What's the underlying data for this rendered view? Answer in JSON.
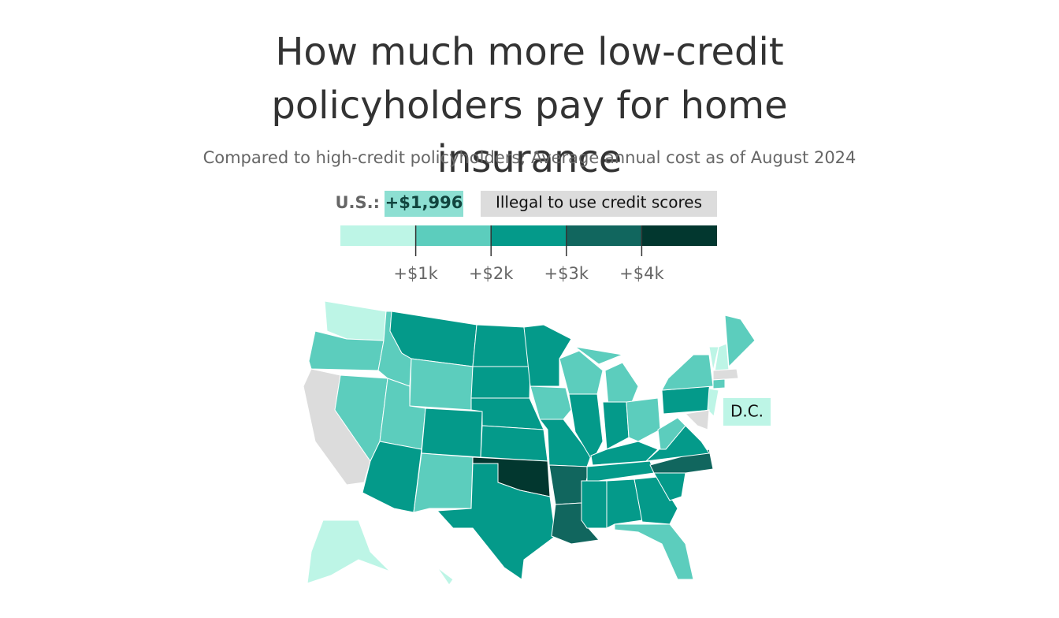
{
  "title": "How much more low-credit policyholders pay for home insurance",
  "subtitle": "Compared to high-credit policyholders; Average annual cost as of August 2024",
  "chart_data": {
    "type": "choropleth",
    "legend": {
      "us_label": "U.S.:",
      "us_value": 1996,
      "us_value_label": "+$1,996",
      "us_value_color": "#8ddfd2",
      "illegal_label": "Illegal to use credit scores",
      "illegal_color": "#dcdcdc",
      "xlim": [
        0,
        5000
      ],
      "xticks": [
        {
          "value": 1000,
          "label": "+$1k"
        },
        {
          "value": 2000,
          "label": "+$2k"
        },
        {
          "value": 3000,
          "label": "+$3k"
        },
        {
          "value": 4000,
          "label": "+$4k"
        }
      ],
      "colors": [
        "#bdf5e6",
        "#5ccdbd",
        "#049a8a",
        "#11665e",
        "#02372f"
      ]
    },
    "regions": [
      "#bdf5e6",
      "#5ccdbd",
      "#dcdcdc",
      "#5ccdbd",
      "#5ccdbd",
      "#049a8a",
      "#5ccdbd",
      "#5ccdbd",
      "#049a8a",
      "#049a8a",
      "#5ccdbd",
      "#049a8a",
      "#049a8a",
      "#049a8a",
      "#049a8a",
      "#02372f",
      "#049a8a",
      "#049a8a",
      "#5ccdbd",
      "#049a8a",
      "#11665e",
      "#11665e",
      "#5ccdbd",
      "#049a8a",
      "#5ccdbd",
      "#5ccdbd",
      "#049a8a",
      "#5ccdbd",
      "#049a8a",
      "#049a8a",
      "#049a8a",
      "#049a8a",
      "#049a8a",
      "#5ccdbd",
      "#049a8a",
      "#11665e",
      "#049a8a",
      "#5ccdbd",
      "#049a8a",
      "#5ccdbd",
      "#bdf5e6",
      "#bdf5e6",
      "#5ccdbd",
      "#dcdcdc",
      "#5ccdbd",
      "#bdf5e6",
      "#dcdcdc",
      "#bdf5e6",
      "#bdf5e6"
    ],
    "dc_label": "D.C.",
    "dc_color": "#bdf5e6"
  }
}
